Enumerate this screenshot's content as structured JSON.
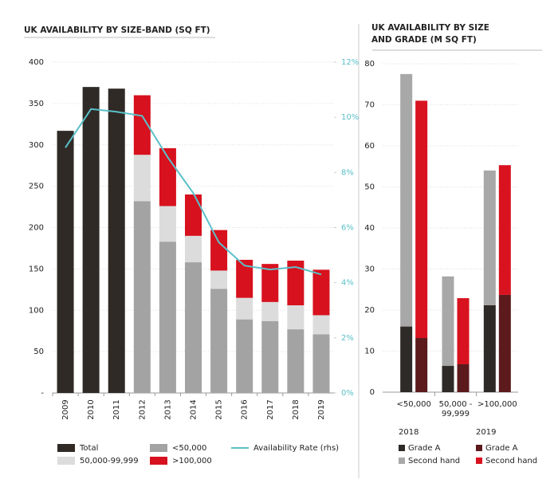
{
  "chart_data": [
    {
      "type": "combo",
      "title": "UK AVAILABILITY BY SIZE-BAND (SQ FT)",
      "categories": [
        "2009",
        "2010",
        "2011",
        "2012",
        "2013",
        "2014",
        "2015",
        "2016",
        "2017",
        "2018",
        "2019"
      ],
      "series": [
        {
          "name": "Total",
          "color": "#2f2a26",
          "values": [
            317,
            370,
            368,
            null,
            null,
            null,
            null,
            null,
            null,
            null,
            null
          ]
        },
        {
          "name": "<50,000",
          "color": "#a3a3a3",
          "values": [
            null,
            null,
            null,
            232,
            183,
            158,
            126,
            89,
            87,
            77,
            71
          ]
        },
        {
          "name": "50,000-99,999",
          "color": "#dcdcdc",
          "values": [
            null,
            null,
            null,
            56,
            43,
            32,
            22,
            26,
            23,
            29,
            23
          ]
        },
        {
          "name": ">100,000",
          "color": "#d7111e",
          "values": [
            null,
            null,
            null,
            72,
            70,
            50,
            49,
            46,
            46,
            54,
            55
          ]
        },
        {
          "name": "Availability Rate (rhs)",
          "color": "#5bc0c8",
          "type": "line",
          "axis": "y2",
          "values": [
            8.9,
            10.3,
            10.2,
            10.05,
            8.55,
            7.25,
            5.46,
            4.62,
            4.48,
            4.57,
            4.3
          ]
        }
      ],
      "ylim": [
        0,
        400
      ],
      "yticks": [
        {
          "value": 0,
          "label": "-"
        },
        50,
        100,
        150,
        200,
        250,
        300,
        350,
        400
      ],
      "y2lim": [
        0,
        12
      ],
      "y2ticks": [
        {
          "value": 0,
          "label": "0%"
        },
        {
          "value": 2,
          "label": "2%"
        },
        {
          "value": 4,
          "label": "4%"
        },
        {
          "value": 6,
          "label": "6%"
        },
        {
          "value": 8,
          "label": "8%"
        },
        {
          "value": 10,
          "label": "10%"
        },
        {
          "value": 12,
          "label": "12%"
        }
      ],
      "grid": true
    },
    {
      "type": "bar",
      "title": "UK AVAILABILITY BY SIZE AND GRADE (M SQ FT)",
      "categories": [
        "<50,000",
        "50,000 - 99,999",
        ">100,000"
      ],
      "series": [
        {
          "name": "Grade A",
          "stack": "2018",
          "color": "#2e2a27",
          "values": [
            16,
            6.4,
            21.2
          ]
        },
        {
          "name": "Second hand",
          "stack": "2018",
          "color": "#a8a8a8",
          "values": [
            61.5,
            21.8,
            32.8
          ]
        },
        {
          "name": "Grade A",
          "stack": "2019",
          "color": "#5c1a1d",
          "values": [
            13.2,
            6.8,
            23.7
          ]
        },
        {
          "name": "Second hand",
          "stack": "2019",
          "color": "#d9121f",
          "values": [
            57.8,
            16.1,
            31.6
          ]
        }
      ],
      "ylim": [
        0,
        80
      ],
      "yticks": [
        0,
        10,
        20,
        30,
        40,
        50,
        60,
        70,
        80
      ],
      "grid": true
    }
  ]
}
